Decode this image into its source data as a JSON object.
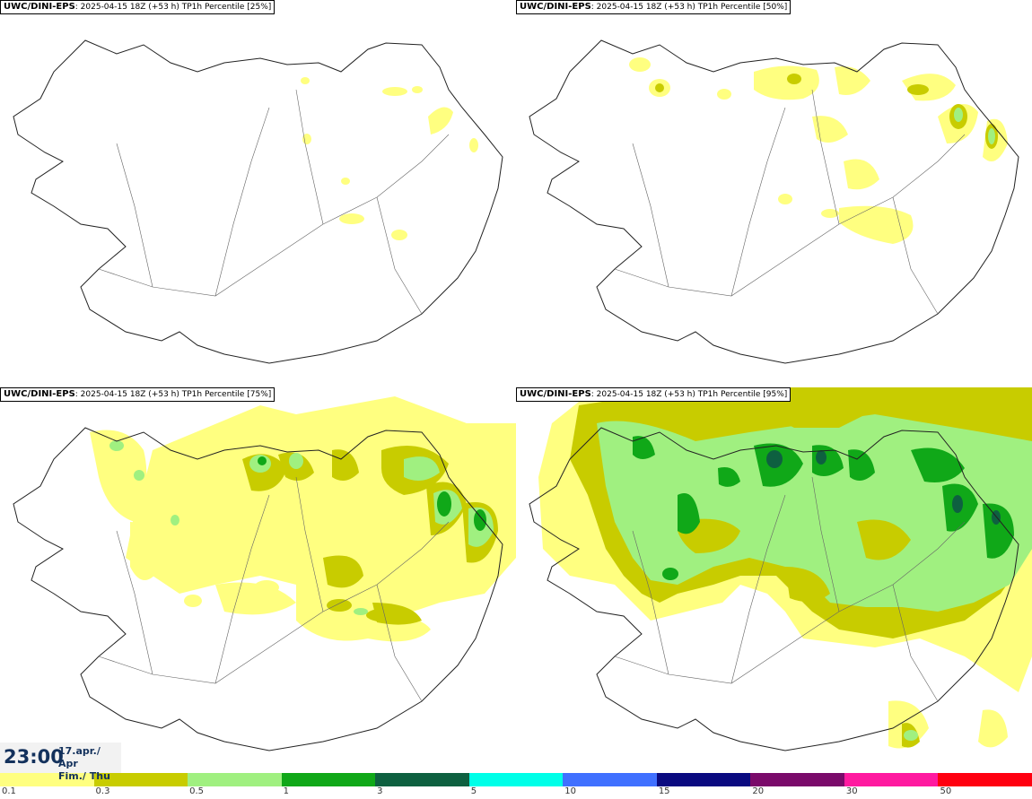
{
  "panels": [
    {
      "title_source": "UWC/DINI-EPS",
      "title_run": ": 2025-04-15 18Z (+53 h)",
      "title_var": " TP1h Percentile [25%]"
    },
    {
      "title_source": "UWC/DINI-EPS",
      "title_run": ": 2025-04-15 18Z (+53 h)",
      "title_var": " TP1h Percentile [50%]"
    },
    {
      "title_source": "UWC/DINI-EPS",
      "title_run": ": 2025-04-15 18Z (+53 h)",
      "title_var": " TP1h Percentile [75%]"
    },
    {
      "title_source": "UWC/DINI-EPS",
      "title_run": ": 2025-04-15 18Z (+53 h)",
      "title_var": " TP1h Percentile [95%]"
    }
  ],
  "timestamp": {
    "time": "23:00",
    "date_line1": "17.apr./ Apr",
    "date_line2": "Fim./ Thu"
  },
  "legend": {
    "colors": [
      "#ffff80",
      "#c8cc00",
      "#a0f080",
      "#10a818",
      "#0e6040",
      "#00ffe8",
      "#4070ff",
      "#0a0a80",
      "#7a0a6a",
      "#ff1aa0",
      "#ff0010"
    ],
    "labels": [
      "0.1",
      "0.3",
      "0.5",
      "1",
      "3",
      "5",
      "10",
      "15",
      "20",
      "30",
      "50"
    ]
  },
  "map_style": {
    "coastline": "#222222",
    "roads": "#666666"
  }
}
